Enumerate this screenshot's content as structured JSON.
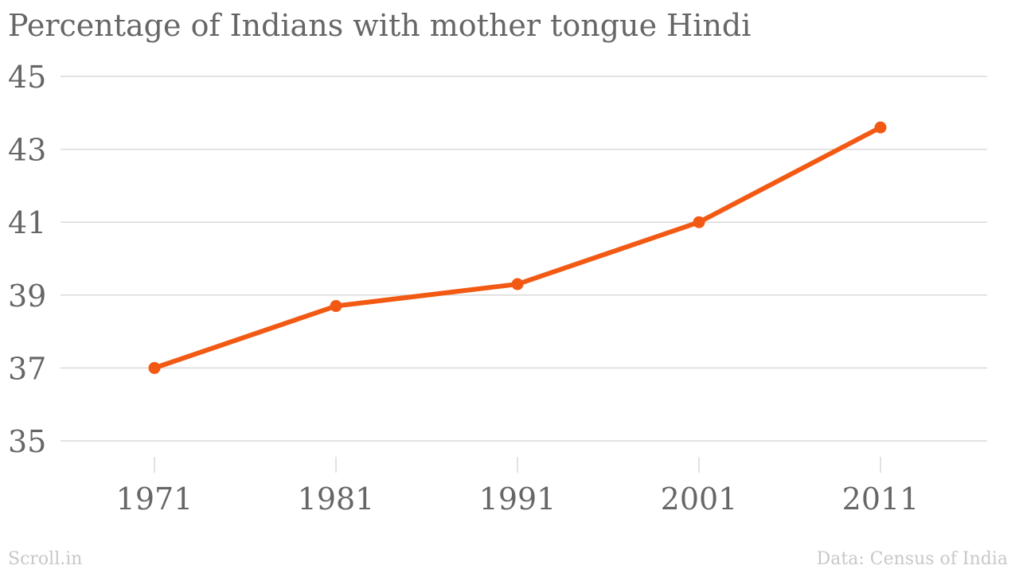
{
  "chart_data": {
    "type": "line",
    "title": "Percentage of Indians with mother tongue Hindi",
    "categories": [
      "1971",
      "1981",
      "1991",
      "2001",
      "2011"
    ],
    "series": [
      {
        "values": [
          37.0,
          38.7,
          39.3,
          41.0,
          43.6
        ]
      }
    ],
    "yticks": [
      "35",
      "37",
      "39",
      "41",
      "43",
      "45"
    ],
    "ylim": [
      35,
      45
    ],
    "grid": true,
    "colors": {
      "line": "#f25a14",
      "grid": "#d9d9d9",
      "text": "#666666"
    }
  },
  "footer": {
    "source_left": "Scroll.in",
    "source_right": "Data: Census of India"
  }
}
